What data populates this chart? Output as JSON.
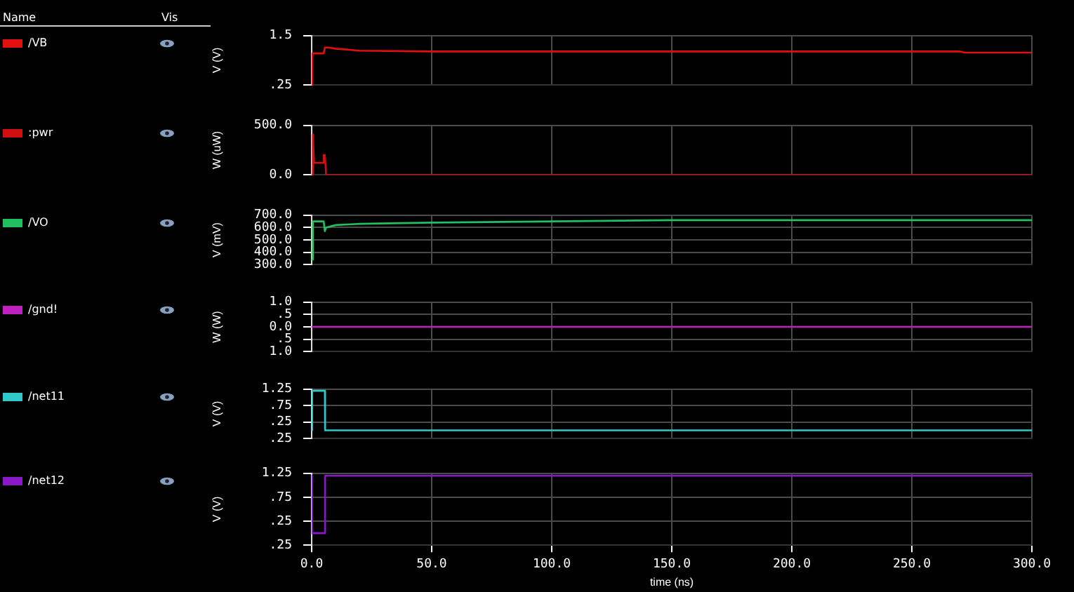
{
  "chart_data": [
    {
      "type": "line",
      "legend_title": "Name",
      "annotations": [
        "Vis"
      ],
      "legend": "left",
      "grid": true,
      "tick_labels": "y",
      "ylabel": "V (V)",
      "xlim": [
        0,
        300
      ],
      "xticks": [
        0,
        50,
        100,
        150,
        200,
        250,
        300
      ],
      "ylim": [
        0.25,
        1.5
      ],
      "yticks": [
        1.5,
        {
          "value": 0.25,
          "label": ".25"
        }
      ],
      "series": [
        {
          "name": "/VB",
          "color": "#e01010",
          "x": [
            0,
            0.3,
            5,
            5.5,
            7,
            10,
            20,
            50,
            100,
            150,
            200,
            270,
            272,
            300
          ],
          "values": [
            0.25,
            1.05,
            1.05,
            1.2,
            1.2,
            1.17,
            1.12,
            1.1,
            1.1,
            1.1,
            1.1,
            1.1,
            1.07,
            1.07
          ]
        }
      ]
    },
    {
      "type": "line",
      "legend": "left",
      "grid": true,
      "tick_labels": "y",
      "ylabel": "W (uW)",
      "xlim": [
        0,
        300
      ],
      "xticks": [
        0,
        50,
        100,
        150,
        200,
        250,
        300
      ],
      "ylim": [
        0,
        500
      ],
      "yticks": [
        {
          "value": 500,
          "label": "500.0"
        },
        {
          "value": 0,
          "label": "0.0"
        }
      ],
      "series": [
        {
          "name": ":pwr",
          "color": "#d01010",
          "x": [
            0,
            0.5,
            1,
            4.8,
            5,
            5.5,
            6,
            7,
            300
          ],
          "values": [
            0,
            410,
            120,
            120,
            200,
            200,
            0,
            0,
            0
          ]
        }
      ]
    },
    {
      "type": "line",
      "legend": "left",
      "grid": true,
      "tick_labels": "y",
      "ylabel": "V (mV)",
      "xlim": [
        0,
        300
      ],
      "xticks": [
        0,
        50,
        100,
        150,
        200,
        250,
        300
      ],
      "ylim": [
        300,
        700
      ],
      "yticks": [
        {
          "value": 700,
          "label": "700.0"
        },
        {
          "value": 600,
          "label": "600.0"
        },
        {
          "value": 500,
          "label": "500.0"
        },
        {
          "value": 400,
          "label": "400.0"
        },
        {
          "value": 300,
          "label": "300.0"
        }
      ],
      "series": [
        {
          "name": "/VO",
          "color": "#20c060",
          "x": [
            0,
            0.5,
            5,
            5.5,
            6,
            10,
            20,
            50,
            100,
            150,
            300
          ],
          "values": [
            340,
            650,
            650,
            570,
            600,
            620,
            630,
            640,
            650,
            660,
            660
          ]
        }
      ]
    },
    {
      "type": "line",
      "legend": "left",
      "grid": true,
      "tick_labels": "y",
      "ylabel": "W (W)",
      "xlim": [
        0,
        300
      ],
      "xticks": [
        0,
        50,
        100,
        150,
        200,
        250,
        300
      ],
      "ylim": [
        -1,
        1
      ],
      "yticks": [
        {
          "value": 1,
          "label": "1.0"
        },
        {
          "value": 0.5,
          "label": ".5"
        },
        {
          "value": 0,
          "label": "0.0"
        },
        {
          "value": -0.5,
          "label": ".5"
        },
        {
          "value": -1,
          "label": "1.0"
        }
      ],
      "series": [
        {
          "name": "/gnd!",
          "color": "#c020c0",
          "x": [
            0,
            300
          ],
          "values": [
            0,
            0
          ]
        }
      ]
    },
    {
      "type": "line",
      "legend": "left",
      "grid": true,
      "tick_labels": "y",
      "ylabel": "V (V)",
      "xlim": [
        0,
        300
      ],
      "xticks": [
        0,
        50,
        100,
        150,
        200,
        250,
        300
      ],
      "ylim": [
        -0.25,
        1.25
      ],
      "yticks": [
        {
          "value": 1.25,
          "label": "1.25"
        },
        {
          "value": 0.75,
          "label": ".75"
        },
        {
          "value": 0.25,
          "label": ".25"
        },
        {
          "value": -0.25,
          "label": ".25"
        }
      ],
      "series": [
        {
          "name": "/net11",
          "color": "#30c8c8",
          "x": [
            0,
            0.2,
            5.5,
            5.6,
            300
          ],
          "values": [
            0,
            1.2,
            1.2,
            0,
            0
          ]
        }
      ]
    },
    {
      "type": "line",
      "legend": "left",
      "grid": true,
      "ylabel": "V (V)",
      "xlabel": "time (ns)",
      "xlim": [
        0,
        300
      ],
      "xticks": [
        {
          "value": 0,
          "label": "0.0"
        },
        {
          "value": 50,
          "label": "50.0"
        },
        {
          "value": 100,
          "label": "100.0"
        },
        {
          "value": 150,
          "label": "150.0"
        },
        {
          "value": 200,
          "label": "200.0"
        },
        {
          "value": 250,
          "label": "250.0"
        },
        {
          "value": 300,
          "label": "300.0"
        }
      ],
      "ylim": [
        -0.25,
        1.25
      ],
      "yticks": [
        {
          "value": 1.25,
          "label": "1.25"
        },
        {
          "value": 0.75,
          "label": ".75"
        },
        {
          "value": 0.25,
          "label": ".25"
        },
        {
          "value": -0.25,
          "label": ".25"
        }
      ],
      "series": [
        {
          "name": "/net12",
          "color": "#8818c8",
          "x": [
            0,
            0.2,
            5.5,
            5.6,
            300
          ],
          "values": [
            1.2,
            0,
            0,
            1.2,
            1.2
          ]
        }
      ]
    }
  ]
}
